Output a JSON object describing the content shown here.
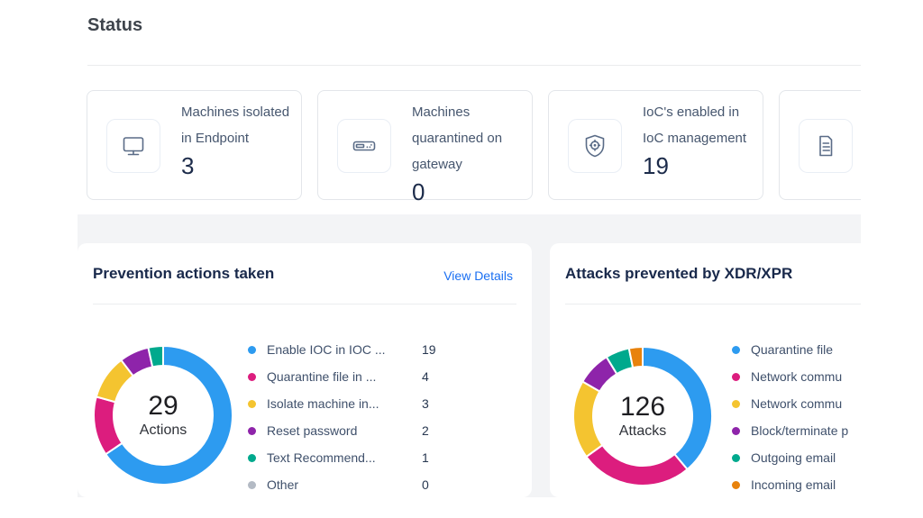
{
  "page": {
    "title": "Status"
  },
  "panels": {
    "view_details_label": "View Details"
  },
  "colors": {
    "blue": "#2d9bf0",
    "pink": "#dc1d7e",
    "yellow": "#f4c430",
    "purple": "#8e24aa",
    "teal": "#00a98d",
    "orange": "#e8820c",
    "gray": "#b3bac4",
    "link": "#1a6ff2",
    "page_background": "#ffffff",
    "section_background": "#f3f4f6"
  },
  "status_cards": [
    {
      "label": "Machines isolated in Endpoint",
      "value": "3",
      "icon": "monitor-icon"
    },
    {
      "label": "Machines quarantined on gateway",
      "value": "0",
      "icon": "gateway-icon"
    },
    {
      "label": "IoC's enabled in IoC management",
      "value": "19",
      "icon": "shield-target-icon"
    },
    {
      "label": "",
      "value": "",
      "icon": "document-icon"
    }
  ],
  "chart_data": [
    {
      "type": "donut",
      "title": "Prevention actions taken",
      "center_value": "29",
      "center_label": "Actions",
      "total": 29,
      "values_shown": true,
      "legend_position": "right",
      "series": [
        {
          "label": "Enable IOC in IOC ...",
          "value": 19,
          "color": "#2d9bf0"
        },
        {
          "label": "Quarantine file in ...",
          "value": 4,
          "color": "#dc1d7e"
        },
        {
          "label": "Isolate machine in...",
          "value": 3,
          "color": "#f4c430"
        },
        {
          "label": "Reset password",
          "value": 2,
          "color": "#8e24aa"
        },
        {
          "label": "Text Recommend...",
          "value": 1,
          "color": "#00a98d"
        },
        {
          "label": "Other",
          "value": 0,
          "color": "#b3bac4"
        }
      ]
    },
    {
      "type": "donut",
      "title": "Attacks prevented by XDR/XPR",
      "center_value": "126",
      "center_label": "Attacks",
      "total": 126,
      "values_shown": false,
      "legend_position": "right",
      "series": [
        {
          "label": "Quarantine file",
          "value": 49,
          "color": "#2d9bf0"
        },
        {
          "label": "Network commu",
          "value": 33,
          "color": "#dc1d7e"
        },
        {
          "label": "Network commu",
          "value": 23,
          "color": "#f4c430"
        },
        {
          "label": "Block/terminate p",
          "value": 10,
          "color": "#8e24aa"
        },
        {
          "label": "Outgoing email",
          "value": 7,
          "color": "#00a98d"
        },
        {
          "label": "Incoming email",
          "value": 4,
          "color": "#e8820c"
        }
      ]
    }
  ]
}
